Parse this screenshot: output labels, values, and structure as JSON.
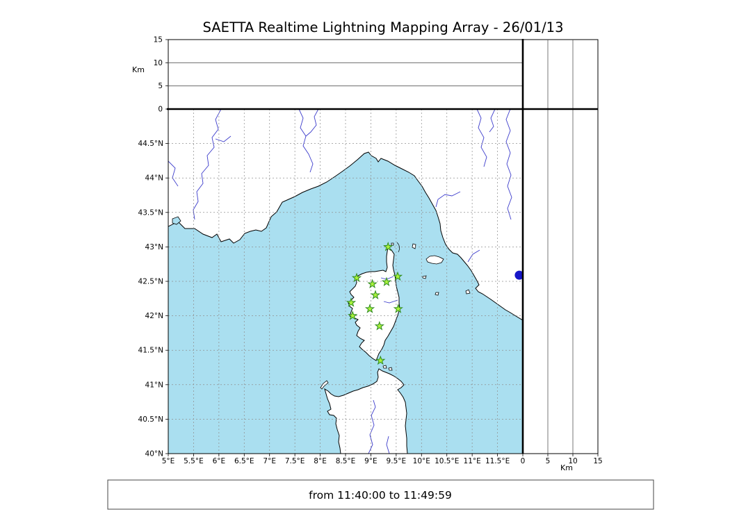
{
  "title": "SAETTA Realtime Lightning Mapping Array - 26/01/13",
  "footer": {
    "time_range": "from 11:40:00 to 11:49:59"
  },
  "axes": {
    "longitude": {
      "range": [
        5,
        12
      ],
      "ticks": [
        {
          "label": "5°E",
          "value": 5
        },
        {
          "label": "5.5°E",
          "value": 5.5
        },
        {
          "label": "6°E",
          "value": 6
        },
        {
          "label": "6.5°E",
          "value": 6.5
        },
        {
          "label": "7°E",
          "value": 7
        },
        {
          "label": "7.5°E",
          "value": 7.5
        },
        {
          "label": "8°E",
          "value": 8
        },
        {
          "label": "8.5°E",
          "value": 8.5
        },
        {
          "label": "9°E",
          "value": 9
        },
        {
          "label": "9.5°E",
          "value": 9.5
        },
        {
          "label": "10°E",
          "value": 10
        },
        {
          "label": "10.5°E",
          "value": 10.5
        },
        {
          "label": "11°E",
          "value": 11
        },
        {
          "label": "11.5°E",
          "value": 11.5
        }
      ]
    },
    "latitude": {
      "range": [
        40,
        45
      ],
      "ticks": [
        {
          "label": "40°N",
          "value": 40
        },
        {
          "label": "40.5°N",
          "value": 40.5
        },
        {
          "label": "41°N",
          "value": 41
        },
        {
          "label": "41.5°N",
          "value": 41.5
        },
        {
          "label": "42°N",
          "value": 42
        },
        {
          "label": "42.5°N",
          "value": 42.5
        },
        {
          "label": "43°N",
          "value": 43
        },
        {
          "label": "43.5°N",
          "value": 43.5
        },
        {
          "label": "44°N",
          "value": 44
        },
        {
          "label": "44.5°N",
          "value": 44.5
        }
      ]
    },
    "altitude_top": {
      "label": "Km",
      "range": [
        0,
        15
      ],
      "gridlines": [
        5,
        10
      ],
      "ticks": [
        {
          "label": "0",
          "value": 0
        },
        {
          "label": "5",
          "value": 5
        },
        {
          "label": "10",
          "value": 10
        },
        {
          "label": "15",
          "value": 15
        }
      ]
    },
    "altitude_right": {
      "label": "Km",
      "range": [
        0,
        15
      ],
      "gridlines": [
        5,
        10
      ],
      "ticks": [
        {
          "label": "0",
          "value": 0
        },
        {
          "label": "5",
          "value": 5
        },
        {
          "label": "10",
          "value": 10
        },
        {
          "label": "15",
          "value": 15
        }
      ]
    }
  },
  "map_features": {
    "lake_dot": {
      "lon": 11.93,
      "lat": 42.59
    }
  },
  "colors": {
    "sea": "#aadff0",
    "land": "#ffffff",
    "coastline": "#000000",
    "river": "#3d3dcc",
    "lake": "#1616c8",
    "grid": "#909090",
    "station_fill": "#aaf23c",
    "station_edge": "#2f8b1f",
    "frame": "#000000"
  },
  "chart_data": {
    "type": "scatter",
    "title": "SAETTA Realtime Lightning Mapping Array - 26/01/13",
    "annotation": "from 11:40:00 to 11:49:59",
    "layout": "geographic map panel (lon 5-12°E, lat 40-45°N) with altitude cross-section panels (0-15 km) above and at right, altitude histogram box top-right, grid on (dashed)",
    "lon_ticks": [
      "5°E",
      "5.5°E",
      "6°E",
      "6.5°E",
      "7°E",
      "7.5°E",
      "8°E",
      "8.5°E",
      "9°E",
      "9.5°E",
      "10°E",
      "10.5°E",
      "11°E",
      "11.5°E"
    ],
    "lat_ticks": [
      "40°N",
      "40.5°N",
      "41°N",
      "41.5°N",
      "42°N",
      "42.5°N",
      "43°N",
      "43.5°N",
      "44°N",
      "44.5°N"
    ],
    "altitude_ticks_km": [
      0,
      5,
      10,
      15
    ],
    "series": [
      {
        "name": "lma-sensor-stations",
        "marker": "star",
        "color": "#aaf23c",
        "points_lon_lat": [
          [
            9.34,
            43.0
          ],
          [
            8.72,
            42.55
          ],
          [
            9.03,
            42.46
          ],
          [
            9.31,
            42.49
          ],
          [
            9.53,
            42.57
          ],
          [
            9.09,
            42.3
          ],
          [
            8.61,
            42.19
          ],
          [
            8.64,
            42.0
          ],
          [
            8.98,
            42.1
          ],
          [
            9.54,
            42.1
          ],
          [
            9.17,
            41.85
          ],
          [
            9.19,
            41.35
          ]
        ]
      }
    ]
  }
}
